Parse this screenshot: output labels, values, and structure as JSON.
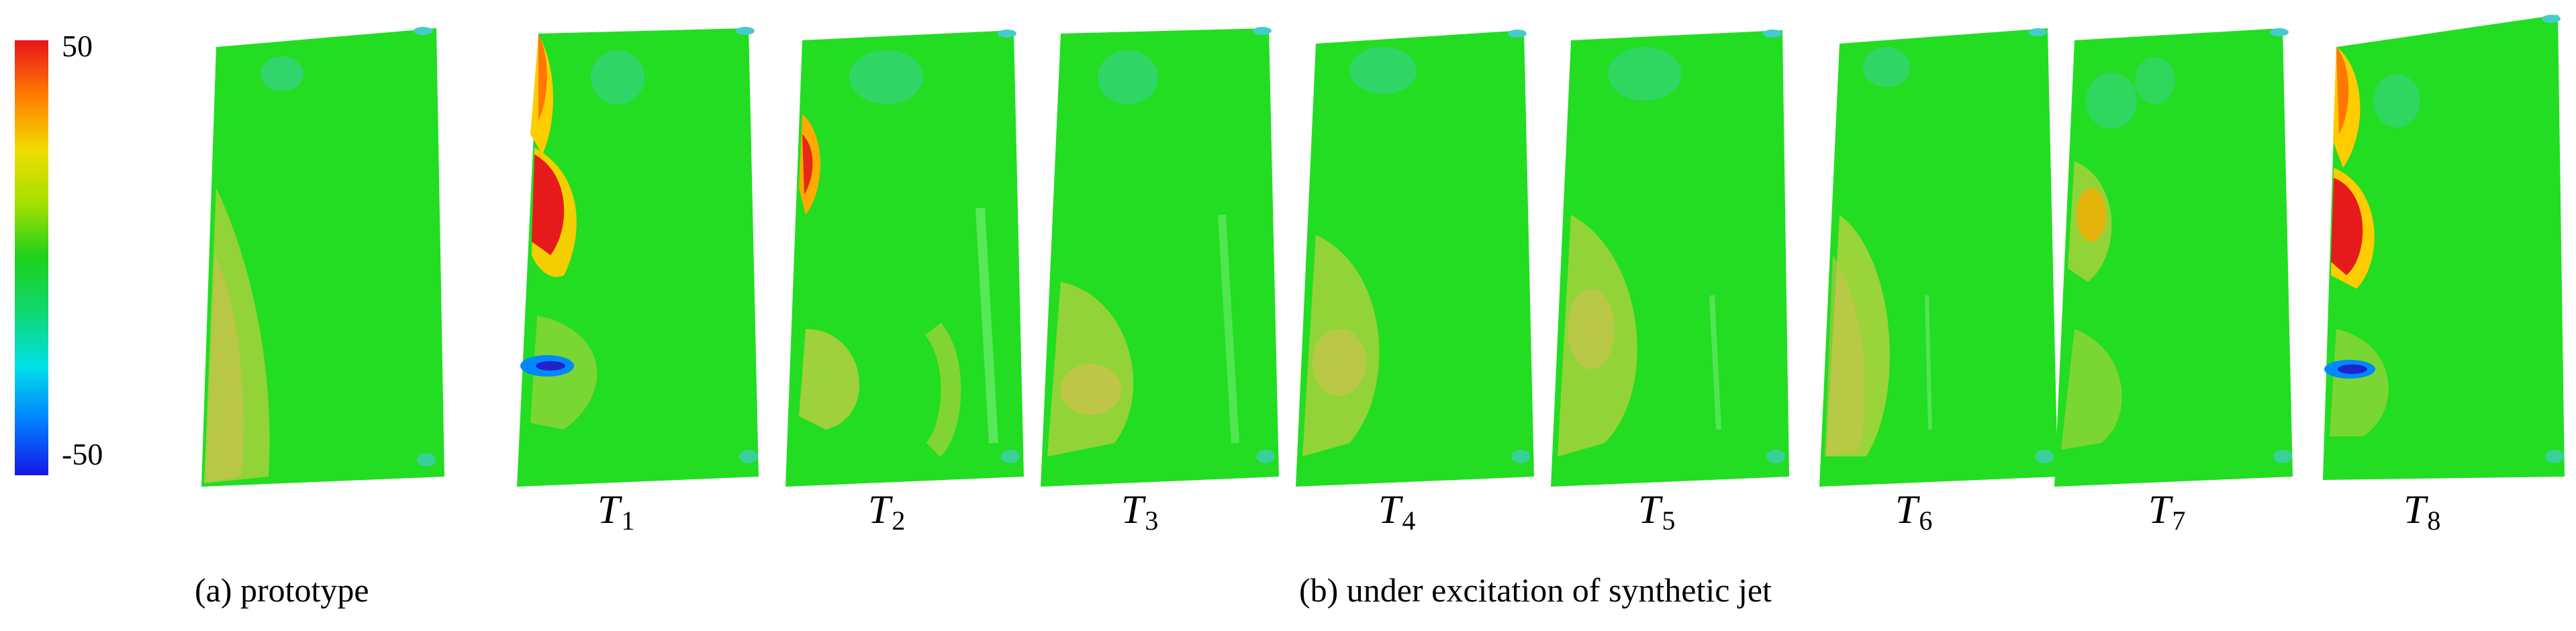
{
  "colorbar": {
    "max_label": "50",
    "min_label": "-50",
    "range": [
      -50,
      50
    ],
    "colors": [
      "#e8141a",
      "#ff7a00",
      "#f2dc00",
      "#a4e000",
      "#1bd11b",
      "#10d870",
      "#00e0e8",
      "#0080ff",
      "#1616e6"
    ]
  },
  "panels": [
    {
      "id": "prototype",
      "letter": "",
      "sub": ""
    },
    {
      "id": "T1",
      "letter": "T",
      "sub": "1"
    },
    {
      "id": "T2",
      "letter": "T",
      "sub": "2"
    },
    {
      "id": "T3",
      "letter": "T",
      "sub": "3"
    },
    {
      "id": "T4",
      "letter": "T",
      "sub": "4"
    },
    {
      "id": "T5",
      "letter": "T",
      "sub": "5"
    },
    {
      "id": "T6",
      "letter": "T",
      "sub": "6"
    },
    {
      "id": "T7",
      "letter": "T",
      "sub": "7"
    },
    {
      "id": "T8",
      "letter": "T",
      "sub": "8"
    }
  ],
  "captions": {
    "a": "(a) prototype",
    "b": "(b) under excitation of synthetic jet"
  }
}
